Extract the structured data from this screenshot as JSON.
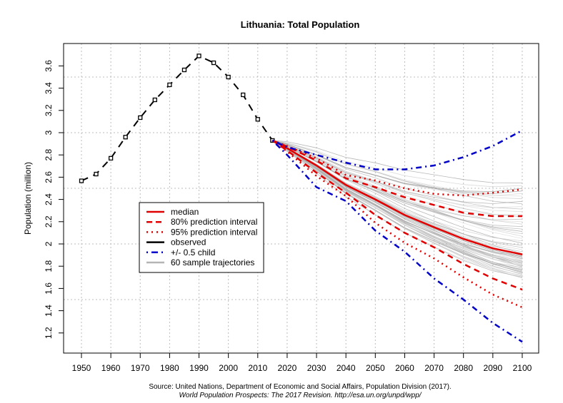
{
  "chart_data": {
    "type": "line",
    "title": "Lithuania: Total Population",
    "xlabel": "",
    "ylabel": "Population (million)",
    "xlim": [
      1945,
      2105
    ],
    "ylim": [
      1.02,
      3.78
    ],
    "x_ticks": [
      1950,
      1960,
      1970,
      1980,
      1990,
      2000,
      2010,
      2020,
      2030,
      2040,
      2050,
      2060,
      2070,
      2080,
      2090,
      2100
    ],
    "y_ticks": [
      1.2,
      1.4,
      1.6,
      1.8,
      2,
      2.2,
      2.4,
      2.6,
      2.8,
      3,
      3.2,
      3.4,
      3.6
    ],
    "y_tick_labels": [
      "1.2",
      "1.4",
      "1.6",
      "1.8",
      "2",
      "2.2",
      "2.4",
      "2.6",
      "2.8",
      "3",
      "3.2",
      "3.4",
      "3.6"
    ],
    "grid": {
      "x_every": 10,
      "y_every": 0.5,
      "style": "dotted"
    },
    "legend_position": "center-left",
    "series": [
      {
        "name": "observed",
        "color": "#000000",
        "style": "dashed-with-square-markers",
        "x": [
          1950,
          1955,
          1960,
          1965,
          1970,
          1975,
          1980,
          1985,
          1990,
          1995,
          2000,
          2005,
          2010,
          2015
        ],
        "values": [
          2.567,
          2.628,
          2.77,
          2.96,
          3.135,
          3.295,
          3.43,
          3.564,
          3.69,
          3.628,
          3.5,
          3.34,
          3.12,
          2.93
        ]
      },
      {
        "name": "median",
        "color": "#e00000",
        "style": "solid",
        "x": [
          2015,
          2020,
          2030,
          2040,
          2050,
          2060,
          2070,
          2080,
          2090,
          2100
        ],
        "values": [
          2.93,
          2.86,
          2.705,
          2.53,
          2.4,
          2.26,
          2.15,
          2.045,
          1.96,
          1.906
        ]
      },
      {
        "name": "80% prediction interval (upper)",
        "color": "#e00000",
        "style": "dashed",
        "x": [
          2015,
          2020,
          2030,
          2040,
          2050,
          2060,
          2070,
          2080,
          2090,
          2100
        ],
        "values": [
          2.93,
          2.875,
          2.75,
          2.59,
          2.51,
          2.42,
          2.35,
          2.28,
          2.25,
          2.25
        ]
      },
      {
        "name": "80% prediction interval (lower)",
        "color": "#e00000",
        "style": "dashed",
        "x": [
          2015,
          2020,
          2030,
          2040,
          2050,
          2060,
          2070,
          2080,
          2090,
          2100
        ],
        "values": [
          2.93,
          2.84,
          2.64,
          2.46,
          2.26,
          2.1,
          1.97,
          1.82,
          1.69,
          1.59
        ]
      },
      {
        "name": "95% prediction interval (upper)",
        "color": "#e00000",
        "style": "dotted",
        "x": [
          2015,
          2020,
          2030,
          2040,
          2050,
          2060,
          2070,
          2080,
          2090,
          2100
        ],
        "values": [
          2.93,
          2.88,
          2.77,
          2.62,
          2.57,
          2.5,
          2.45,
          2.435,
          2.46,
          2.49
        ]
      },
      {
        "name": "95% prediction interval (lower)",
        "color": "#e00000",
        "style": "dotted",
        "x": [
          2015,
          2020,
          2030,
          2040,
          2050,
          2060,
          2070,
          2080,
          2090,
          2100
        ],
        "values": [
          2.93,
          2.83,
          2.61,
          2.43,
          2.19,
          2.01,
          1.87,
          1.7,
          1.545,
          1.43
        ]
      },
      {
        "name": "+/- 0.5 child (upper)",
        "color": "#0000c8",
        "style": "dotdash",
        "x": [
          2015,
          2020,
          2030,
          2040,
          2050,
          2060,
          2070,
          2080,
          2090,
          2100
        ],
        "values": [
          2.93,
          2.87,
          2.8,
          2.73,
          2.67,
          2.67,
          2.705,
          2.78,
          2.88,
          3.02
        ]
      },
      {
        "name": "+/- 0.5 child (lower)",
        "color": "#0000c8",
        "style": "dotdash",
        "x": [
          2015,
          2020,
          2030,
          2040,
          2050,
          2060,
          2070,
          2080,
          2090,
          2100
        ],
        "values": [
          2.93,
          2.8,
          2.51,
          2.385,
          2.12,
          1.93,
          1.69,
          1.5,
          1.29,
          1.12
        ]
      }
    ],
    "sample_trajectories": {
      "name": "60 sample trajectories",
      "color": "#b4b4b4",
      "count": 60,
      "start": {
        "x": 2015,
        "value": 2.93
      },
      "range_2100": [
        1.69,
        2.56
      ]
    },
    "legend": [
      {
        "label": "median",
        "color": "#e00000",
        "style": "solid"
      },
      {
        "label": "80% prediction interval",
        "color": "#e00000",
        "style": "dashed"
      },
      {
        "label": "95% prediction interval",
        "color": "#e00000",
        "style": "dotted"
      },
      {
        "label": "observed",
        "color": "#000000",
        "style": "solid"
      },
      {
        "label": "+/- 0.5 child",
        "color": "#0000c8",
        "style": "dotdash"
      },
      {
        "label": "60 sample trajectories",
        "color": "#b4b4b4",
        "style": "solid"
      }
    ],
    "source_line1": "Source: United Nations, Department of Economic and Social Affairs, Population Division (2017).",
    "source_line2": "World Population Prospects: The 2017 Revision. http://esa.un.org/unpd/wpp/"
  }
}
